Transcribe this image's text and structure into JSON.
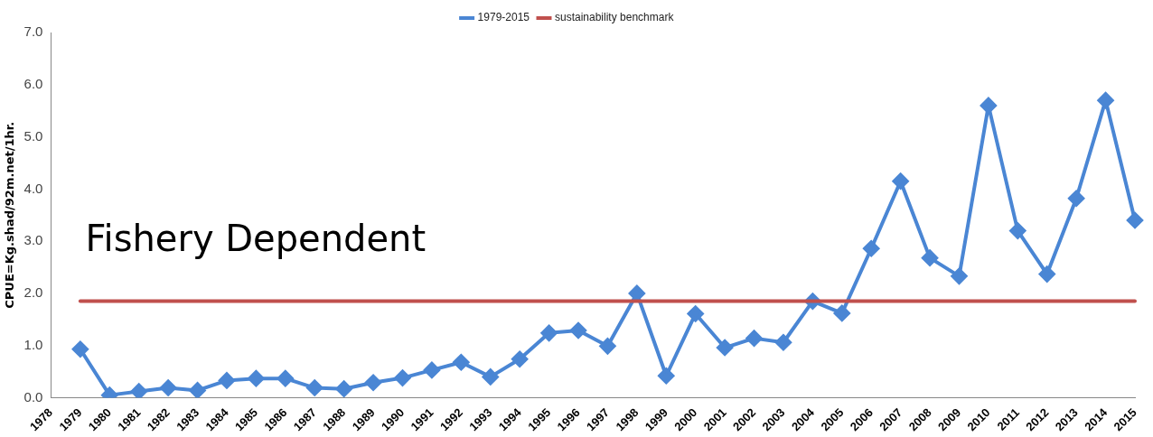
{
  "chart_data": {
    "type": "line",
    "ylabel": "CPUE=Kg.shad/92m.net/1hr.",
    "categories": [
      "1978",
      "1979",
      "1980",
      "1981",
      "1982",
      "1983",
      "1984",
      "1985",
      "1986",
      "1987",
      "1988",
      "1989",
      "1990",
      "1991",
      "1992",
      "1993",
      "1994",
      "1995",
      "1996",
      "1997",
      "1998",
      "1999",
      "2000",
      "2001",
      "2002",
      "2003",
      "2004",
      "2005",
      "2006",
      "2007",
      "2008",
      "2009",
      "2010",
      "2011",
      "2012",
      "2013",
      "2014",
      "2015"
    ],
    "series": [
      {
        "name": "1979-2015",
        "color": "#4a86d4",
        "marker": "diamond",
        "values": [
          null,
          0.93,
          0.05,
          0.12,
          0.19,
          0.14,
          0.33,
          0.37,
          0.37,
          0.19,
          0.17,
          0.29,
          0.38,
          0.53,
          0.68,
          0.4,
          0.74,
          1.24,
          1.29,
          0.99,
          2.0,
          0.42,
          1.61,
          0.96,
          1.14,
          1.06,
          1.85,
          1.62,
          2.86,
          4.15,
          2.68,
          2.33,
          5.6,
          3.2,
          2.37,
          3.82,
          5.7,
          3.4
        ]
      },
      {
        "name": "sustainability benchmark",
        "color": "#c0504d",
        "marker": "none",
        "values": [
          null,
          1.85,
          1.85,
          1.85,
          1.85,
          1.85,
          1.85,
          1.85,
          1.85,
          1.85,
          1.85,
          1.85,
          1.85,
          1.85,
          1.85,
          1.85,
          1.85,
          1.85,
          1.85,
          1.85,
          1.85,
          1.85,
          1.85,
          1.85,
          1.85,
          1.85,
          1.85,
          1.85,
          1.85,
          1.85,
          1.85,
          1.85,
          1.85,
          1.85,
          1.85,
          1.85,
          1.85,
          1.85
        ]
      }
    ],
    "ylim": [
      0,
      7
    ],
    "yticks": [
      {
        "value": 0,
        "label": "0.0"
      },
      {
        "value": 1,
        "label": "1.0"
      },
      {
        "value": 2,
        "label": "2.0"
      },
      {
        "value": 3,
        "label": "3.0"
      },
      {
        "value": 4,
        "label": "4.0"
      },
      {
        "value": 5,
        "label": "5.0"
      },
      {
        "value": 6,
        "label": "6.0"
      },
      {
        "value": 7,
        "label": "7.0"
      }
    ],
    "grid": false,
    "legend": "top",
    "annotations": [
      "Fishery Dependent"
    ]
  }
}
